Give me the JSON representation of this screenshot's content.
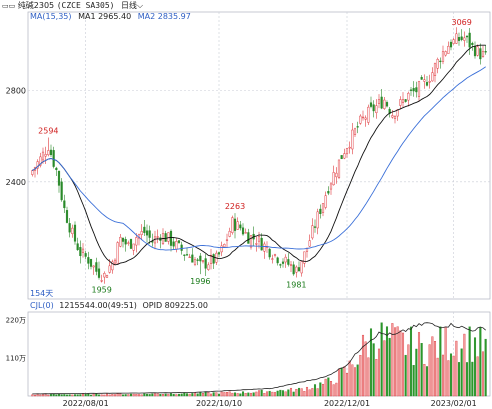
{
  "header": {
    "symbol_label": "纯碱2305",
    "symbol_suffix": "(CZCE SA305)",
    "period_label": "日线",
    "ma_label": "MA(15,35)",
    "ma1_label": "MA1 2965.40",
    "ma2_label": "MA2 2835.97"
  },
  "sub_header": {
    "indicator_label": "CJL(0)",
    "volume_label": "1215544.00(49:51)",
    "opid_label": "OPID 809225.00"
  },
  "bar_count_label": "154天",
  "colors": {
    "up": "#e0393e",
    "down": "#2a8a2a",
    "ma1": "#111111",
    "ma2": "#3a6fd8",
    "grid": "#c9ccd6",
    "axis": "#888888",
    "opid": "#222222"
  },
  "chart_data": {
    "type": "candlestick",
    "price_axis": {
      "ticks": [
        2400,
        2800
      ],
      "range": [
        1900,
        3100
      ]
    },
    "volume_axis": {
      "ticks": [
        "110万",
        "220万"
      ],
      "range": [
        0,
        2300000
      ]
    },
    "date_ticks": [
      "2022/08/01",
      "2022/10/10",
      "2022/12/01",
      "2023/02/01"
    ],
    "date_tick_index": [
      20,
      70,
      118,
      158
    ],
    "annotations": [
      {
        "label": "2594",
        "index": 6,
        "value": 2594,
        "pos": "above"
      },
      {
        "label": "1959",
        "index": 26,
        "value": 1959,
        "pos": "below"
      },
      {
        "label": "2263",
        "index": 76,
        "value": 2263,
        "pos": "above"
      },
      {
        "label": "1996",
        "index": 63,
        "value": 1996,
        "pos": "below"
      },
      {
        "label": "1981",
        "index": 99,
        "value": 1981,
        "pos": "below"
      },
      {
        "label": "3069",
        "index": 161,
        "value": 3069,
        "pos": "above"
      }
    ],
    "anchors_close": [
      [
        0,
        2450
      ],
      [
        3,
        2500
      ],
      [
        6,
        2560
      ],
      [
        9,
        2450
      ],
      [
        12,
        2280
      ],
      [
        15,
        2170
      ],
      [
        18,
        2090
      ],
      [
        21,
        2060
      ],
      [
        24,
        2010
      ],
      [
        27,
        1990
      ],
      [
        30,
        2050
      ],
      [
        33,
        2150
      ],
      [
        36,
        2120
      ],
      [
        39,
        2160
      ],
      [
        42,
        2180
      ],
      [
        45,
        2140
      ],
      [
        48,
        2170
      ],
      [
        51,
        2150
      ],
      [
        54,
        2120
      ],
      [
        57,
        2090
      ],
      [
        60,
        2070
      ],
      [
        63,
        2030
      ],
      [
        66,
        2050
      ],
      [
        69,
        2060
      ],
      [
        72,
        2120
      ],
      [
        75,
        2220
      ],
      [
        78,
        2200
      ],
      [
        81,
        2160
      ],
      [
        84,
        2150
      ],
      [
        87,
        2120
      ],
      [
        90,
        2090
      ],
      [
        93,
        2060
      ],
      [
        96,
        2040
      ],
      [
        99,
        2010
      ],
      [
        102,
        2080
      ],
      [
        105,
        2180
      ],
      [
        108,
        2280
      ],
      [
        111,
        2380
      ],
      [
        114,
        2460
      ],
      [
        117,
        2540
      ],
      [
        120,
        2600
      ],
      [
        123,
        2660
      ],
      [
        126,
        2700
      ],
      [
        129,
        2730
      ],
      [
        132,
        2760
      ],
      [
        135,
        2700
      ],
      [
        138,
        2740
      ],
      [
        141,
        2780
      ],
      [
        144,
        2800
      ],
      [
        147,
        2830
      ],
      [
        150,
        2880
      ],
      [
        153,
        2950
      ],
      [
        156,
        3000
      ],
      [
        159,
        3020
      ],
      [
        162,
        3030
      ],
      [
        165,
        2990
      ],
      [
        168,
        2960
      ],
      [
        170,
        2950
      ]
    ],
    "volume_anchors": [
      [
        0,
        40000
      ],
      [
        40,
        60000
      ],
      [
        80,
        110000
      ],
      [
        100,
        200000
      ],
      [
        110,
        400000
      ],
      [
        118,
        800000
      ],
      [
        124,
        1500000
      ],
      [
        128,
        1900000
      ],
      [
        134,
        1750000
      ],
      [
        140,
        1650000
      ],
      [
        146,
        1500000
      ],
      [
        152,
        1600000
      ],
      [
        158,
        1750000
      ],
      [
        164,
        1700000
      ],
      [
        170,
        1550000
      ]
    ],
    "opid_anchors": [
      [
        0,
        60000
      ],
      [
        60,
        100000
      ],
      [
        90,
        220000
      ],
      [
        110,
        550000
      ],
      [
        118,
        900000
      ],
      [
        124,
        1450000
      ],
      [
        130,
        1800000
      ],
      [
        136,
        1750000
      ],
      [
        142,
        1950000
      ],
      [
        148,
        2100000
      ],
      [
        152,
        2000000
      ],
      [
        158,
        2050000
      ],
      [
        164,
        1900000
      ],
      [
        170,
        1950000
      ]
    ],
    "series": [
      {
        "name": "MA1",
        "period": 15
      },
      {
        "name": "MA2",
        "period": 35
      }
    ]
  }
}
